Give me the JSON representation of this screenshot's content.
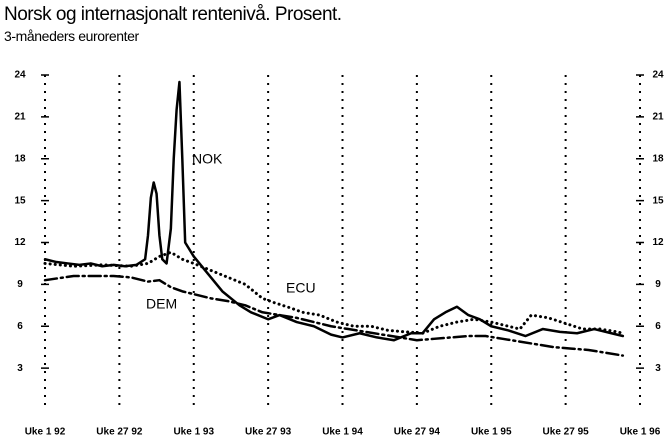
{
  "chart_data": {
    "type": "line",
    "title": "Norsk og internasjonalt rentenivå. Prosent.",
    "subtitle": "3-måneders eurorenter",
    "xlim": [
      0,
      208
    ],
    "xticks": [
      {
        "value": 0,
        "label": "Uke 1 92"
      },
      {
        "value": 26,
        "label": "Uke 27 92"
      },
      {
        "value": 52,
        "label": "Uke 1 93"
      },
      {
        "value": 78,
        "label": "Uke 27 93"
      },
      {
        "value": 104,
        "label": "Uke 1 94"
      },
      {
        "value": 130,
        "label": "Uke 27 94"
      },
      {
        "value": 156,
        "label": "Uke 1 95"
      },
      {
        "value": 182,
        "label": "Uke 27 95"
      },
      {
        "value": 208,
        "label": "Uke 1 96"
      }
    ],
    "ylim": [
      0,
      24
    ],
    "yticks": [
      3,
      6,
      9,
      12,
      15,
      18,
      21,
      24
    ],
    "y2lim": [
      0,
      24
    ],
    "y2ticks": [
      3,
      6,
      9,
      12,
      15,
      18,
      21,
      24
    ],
    "grid": true,
    "series": [
      {
        "name": "NOK",
        "color": "#000000",
        "style": "solid",
        "x": [
          0,
          4,
          8,
          12,
          16,
          20,
          24,
          28,
          32,
          35,
          36,
          37,
          38,
          39,
          40,
          41,
          42.5,
          44,
          45,
          46,
          47,
          48,
          49,
          52,
          56,
          62,
          68,
          72,
          78,
          82,
          88,
          94,
          100,
          104,
          110,
          116,
          122,
          128,
          132,
          136,
          140,
          144,
          148,
          152,
          156,
          162,
          168,
          174,
          180,
          186,
          192,
          198,
          202
        ],
        "values": [
          10.8,
          10.6,
          10.5,
          10.4,
          10.5,
          10.3,
          10.4,
          10.3,
          10.4,
          10.8,
          12.5,
          15.2,
          16.3,
          15.5,
          12.5,
          10.8,
          10.5,
          13,
          18,
          21.5,
          23.5,
          18,
          12,
          11,
          10,
          8.5,
          7.5,
          7,
          6.5,
          6.8,
          6.3,
          6,
          5.4,
          5.2,
          5.5,
          5.2,
          5,
          5.5,
          5.5,
          6.5,
          7,
          7.4,
          6.8,
          6.5,
          6,
          5.7,
          5.3,
          5.8,
          5.6,
          5.5,
          5.8,
          5.5,
          5.3
        ]
      },
      {
        "name": "ECU",
        "color": "#000000",
        "style": "dotted",
        "x": [
          0,
          10,
          20,
          30,
          36,
          40,
          44,
          48,
          52,
          58,
          64,
          70,
          76,
          80,
          86,
          90,
          96,
          102,
          108,
          114,
          120,
          126,
          132,
          138,
          144,
          150,
          156,
          162,
          166,
          170,
          176,
          182,
          188,
          194,
          200,
          202
        ],
        "values": [
          10.5,
          10.3,
          10.4,
          10.3,
          10.5,
          11,
          11.3,
          10.8,
          10.5,
          10,
          9.5,
          9,
          8,
          7.7,
          7.3,
          7,
          6.8,
          6.3,
          6,
          6,
          5.7,
          5.6,
          5.5,
          6,
          6.3,
          6.5,
          6.3,
          6,
          5.8,
          6.8,
          6.6,
          6.2,
          5.8,
          5.8,
          5.6,
          5.5
        ]
      },
      {
        "name": "DEM",
        "color": "#000000",
        "style": "dashdot",
        "x": [
          0,
          10,
          24,
          30,
          36,
          40,
          44,
          48,
          52,
          58,
          64,
          70,
          76,
          82,
          88,
          94,
          100,
          106,
          112,
          118,
          124,
          130,
          136,
          142,
          148,
          154,
          160,
          166,
          172,
          178,
          184,
          190,
          196,
          202
        ],
        "values": [
          9.3,
          9.6,
          9.6,
          9.5,
          9.2,
          9.3,
          8.8,
          8.5,
          8.3,
          8,
          7.8,
          7.5,
          7,
          6.8,
          6.6,
          6.3,
          6,
          5.8,
          5.6,
          5.4,
          5.2,
          5,
          5.1,
          5.2,
          5.3,
          5.3,
          5.1,
          4.9,
          4.7,
          4.5,
          4.4,
          4.3,
          4.1,
          3.9
        ]
      }
    ]
  }
}
